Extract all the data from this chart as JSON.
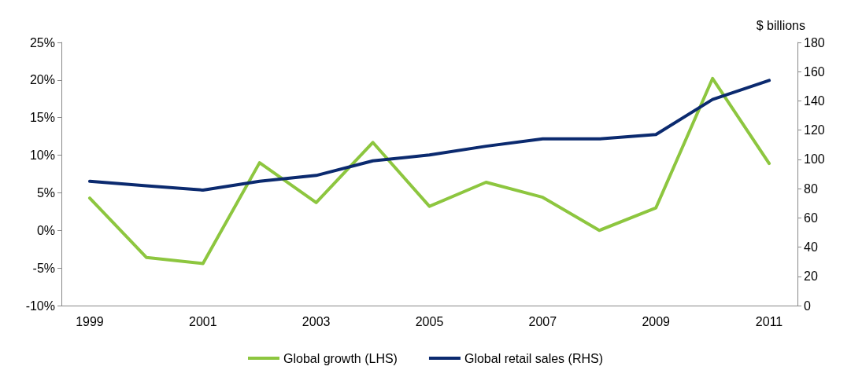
{
  "chart_data": {
    "type": "line",
    "y2label": "$ billions",
    "categories": [
      "1999",
      null,
      "2001",
      null,
      "2003",
      null,
      "2005",
      null,
      "2007",
      null,
      "2009",
      null,
      "2011"
    ],
    "series": [
      {
        "name": "Global growth (LHS)",
        "color": "#8dc63f",
        "values": [
          4.3,
          -3.6,
          -4.4,
          9.0,
          3.7,
          11.7,
          3.2,
          6.4,
          4.4,
          0,
          3.0,
          20.2,
          8.9
        ]
      },
      {
        "name": "Global retail sales (RHS)",
        "color": "#0b2a6f",
        "axis": "y2",
        "values": [
          85,
          82,
          79,
          85,
          89,
          99,
          103,
          109,
          114,
          114,
          117,
          141,
          154
        ]
      }
    ],
    "ylim": [
      -10,
      25
    ],
    "yticks": [
      {
        "value": -10,
        "label": "-10%"
      },
      {
        "value": -5,
        "label": "-5%"
      },
      {
        "value": 0,
        "label": "0%"
      },
      {
        "value": 5,
        "label": "5%"
      },
      {
        "value": 10,
        "label": "10%"
      },
      {
        "value": 15,
        "label": "15%"
      },
      {
        "value": 20,
        "label": "20%"
      },
      {
        "value": 25,
        "label": "25%"
      }
    ],
    "y2lim": [
      0,
      180
    ],
    "y2ticks": [
      0,
      20,
      40,
      60,
      80,
      100,
      120,
      140,
      160,
      180
    ],
    "grid": false,
    "legend": "bottom",
    "marker": "none",
    "line_style": "solid"
  }
}
